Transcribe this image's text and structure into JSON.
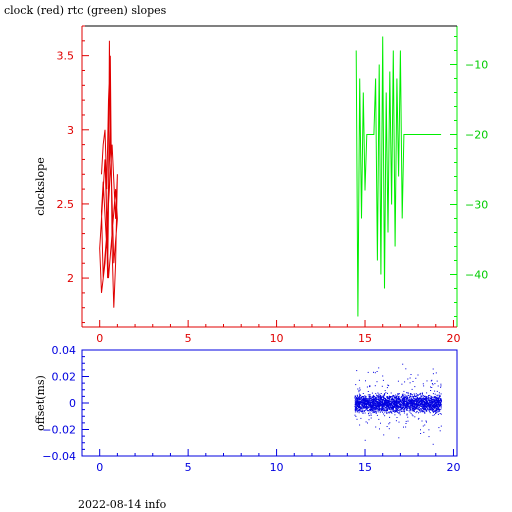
{
  "title": "clock (red) rtc (green) slopes",
  "footer": "2022-08-14 info",
  "colors": {
    "clock": "#e00000",
    "rtc": "#00ee00",
    "offset": "#0000e0",
    "axes_top": "#000000"
  },
  "chart_data": [
    {
      "type": "line",
      "panel": "top",
      "xlabel": "",
      "ylabel": "clockslope",
      "xlim": [
        -1,
        20.2
      ],
      "xticks": [
        0,
        5,
        10,
        15,
        20
      ],
      "ylim": [
        1.67,
        3.7
      ],
      "yticks": [
        2,
        2.5,
        3,
        3.5
      ],
      "ytick_labels": [
        "2",
        "2.5",
        "3",
        "3.5"
      ],
      "y2lim": [
        -47.5,
        -4.5
      ],
      "y2ticks": [
        -10,
        -20,
        -30,
        -40
      ],
      "series": [
        {
          "axis": "left",
          "color": "#e00000",
          "x": [
            0.1,
            0.2,
            0.3,
            0.4,
            0.5,
            0.6,
            0.7,
            0.8,
            0.9,
            1.0,
            0.9,
            0.7,
            0.5,
            0.3,
            0.1,
            0.0,
            0.1,
            0.3,
            0.5,
            0.7,
            0.9,
            1.0,
            0.8,
            0.6,
            0.4,
            0.2,
            0.1,
            0.2,
            0.4,
            0.6,
            0.55,
            0.5,
            0.45,
            0.4,
            0.35
          ],
          "y": [
            2.7,
            2.9,
            3.0,
            2.6,
            3.2,
            3.5,
            2.2,
            1.8,
            2.1,
            2.7,
            2.4,
            2.9,
            2.5,
            2.1,
            1.9,
            2.2,
            2.4,
            2.8,
            2.0,
            2.3,
            2.6,
            2.4,
            2.1,
            2.95,
            2.3,
            2.0,
            2.45,
            2.65,
            2.2,
            3.0,
            3.6,
            2.5,
            2.0,
            2.3,
            2.75
          ]
        },
        {
          "axis": "right",
          "color": "#00ee00",
          "x": [
            14.5,
            14.6,
            14.7,
            14.8,
            14.9,
            15.0,
            15.1,
            15.3,
            15.5,
            15.6,
            15.7,
            15.8,
            15.9,
            16.0,
            16.1,
            16.2,
            16.3,
            16.4,
            16.5,
            16.6,
            16.7,
            16.8,
            16.9,
            17.0,
            17.1,
            17.2,
            17.4,
            17.8,
            18.2,
            18.6,
            19.0,
            19.3
          ],
          "y": [
            -8,
            -46,
            -12,
            -32,
            -14,
            -28,
            -20,
            -20,
            -20,
            -12,
            -38,
            -10,
            -40,
            -6,
            -42,
            -14,
            -34,
            -11,
            -30,
            -8,
            -36,
            -12,
            -26,
            -8,
            -32,
            -20,
            -20,
            -20,
            -20,
            -20,
            -20,
            -20
          ]
        }
      ]
    },
    {
      "type": "scatter",
      "panel": "bottom",
      "xlabel": "",
      "ylabel": "offset(ms)",
      "xlim": [
        -1,
        20.2
      ],
      "xticks": [
        0,
        5,
        10,
        15,
        20
      ],
      "ylim": [
        -0.04,
        0.04
      ],
      "yticks": [
        0.04,
        0.02,
        0,
        -0.02,
        -0.04
      ],
      "ytick_labels": [
        "0.04",
        "0.02",
        "0",
        "−0.02",
        "−0.04"
      ],
      "series": [
        {
          "color": "#0000e0",
          "x_range": [
            14.4,
            19.3
          ],
          "y_center": 0,
          "y_spread": 0.018
        }
      ]
    }
  ]
}
